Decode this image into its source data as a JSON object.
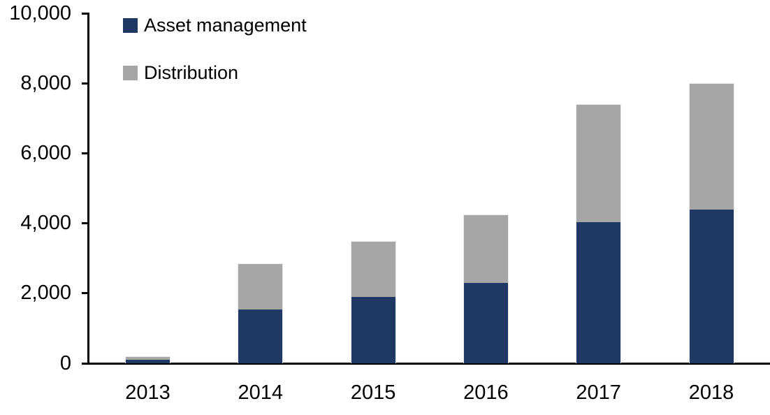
{
  "chart_data": {
    "type": "bar",
    "stacked": true,
    "title": "",
    "xlabel": "",
    "ylabel": "",
    "categories": [
      "2013",
      "2014",
      "2015",
      "2016",
      "2017",
      "2018"
    ],
    "series": [
      {
        "name": "Asset management",
        "color": "#1F3864",
        "values": [
          100,
          1550,
          1900,
          2300,
          4050,
          4400
        ]
      },
      {
        "name": "Distribution",
        "color": "#A6A6A6",
        "values": [
          100,
          1300,
          1600,
          1950,
          3350,
          3600
        ]
      }
    ],
    "totals": [
      200,
      2850,
      3500,
      4250,
      7400,
      8000
    ],
    "ylim": [
      0,
      10000
    ],
    "ytick_interval": 2000,
    "yticks": [
      {
        "value": 0,
        "label": "0"
      },
      {
        "value": 2000,
        "label": "2,000"
      },
      {
        "value": 4000,
        "label": "4,000"
      },
      {
        "value": 6000,
        "label": "6,000"
      },
      {
        "value": 8000,
        "label": "8,000"
      },
      {
        "value": 10000,
        "label": "10,000"
      }
    ],
    "grid": false,
    "legend_position": "top-left",
    "axis_color": "#000000",
    "background_color": "#FFFFFF"
  }
}
